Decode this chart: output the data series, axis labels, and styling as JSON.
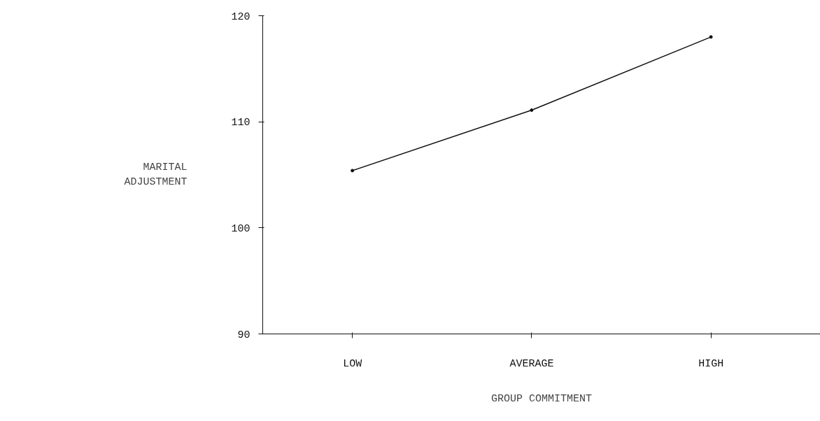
{
  "chart_data": {
    "type": "line",
    "xlabel": "GROUP COMMITMENT",
    "ylabel": "MARITAL\nADJUSTMENT",
    "categories": [
      "LOW",
      "AVERAGE",
      "HIGH"
    ],
    "values": [
      105.4,
      111.1,
      118.0
    ],
    "color": "#111111",
    "marker": "circle",
    "line_style": "solid",
    "grid": false,
    "ylim": [
      90,
      120
    ],
    "yticks": [
      90,
      100,
      110,
      120
    ]
  }
}
